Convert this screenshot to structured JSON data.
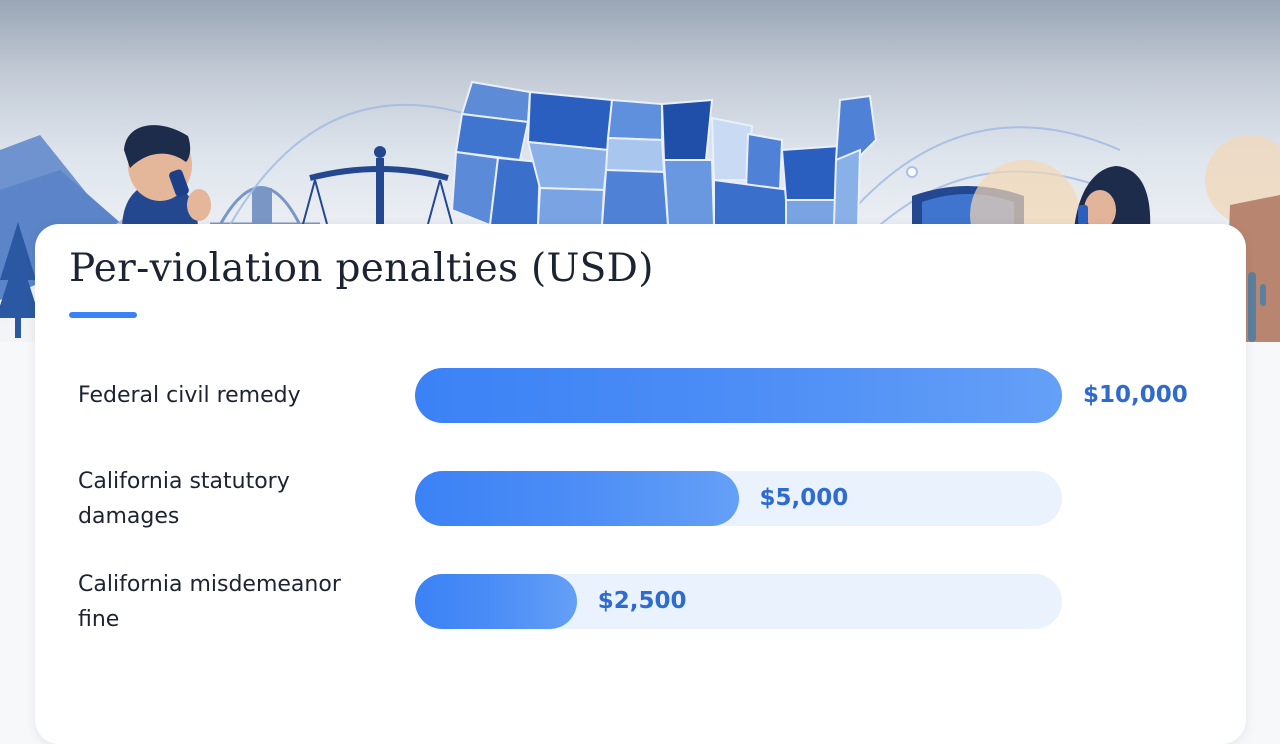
{
  "chart_data": {
    "type": "bar",
    "orientation": "horizontal",
    "title": "Per-violation penalties (USD)",
    "categories": [
      "Federal civil remedy",
      "California statutory damages",
      "California misdemeanor fine"
    ],
    "values": [
      10000,
      5000,
      2500
    ],
    "value_labels": [
      "$10,000",
      "$5,000",
      "$2,500"
    ],
    "xlim": [
      0,
      10000
    ],
    "grid": false,
    "legend": "none"
  },
  "colors": {
    "bar": "#3b82f6",
    "track": "#eaf2fd",
    "value_text": "#2f6bcf",
    "title_accent": "#3b82f6"
  },
  "illustration": {
    "icons": [
      "us-map",
      "scales-of-justice-icon",
      "shield-icon",
      "person-on-phone-left",
      "person-on-phone-right",
      "golden-gate-bridge",
      "mountains",
      "pine-tree",
      "cactus"
    ]
  }
}
